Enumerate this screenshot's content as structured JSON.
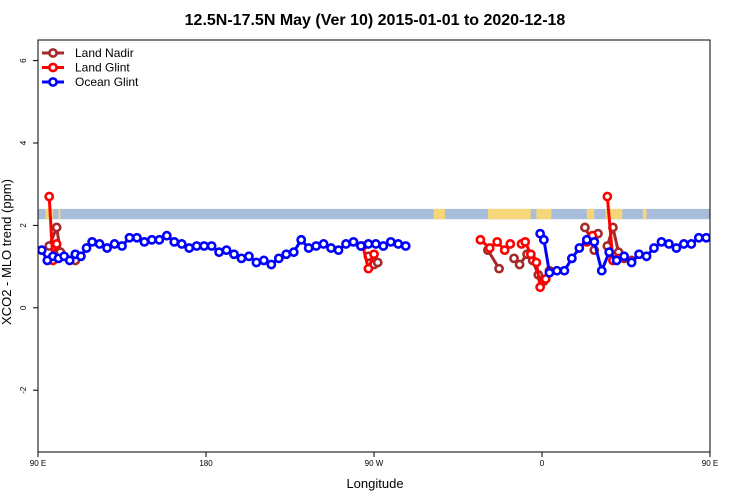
{
  "chart_data": {
    "type": "line",
    "title": "12.5N-17.5N May (Ver 10)   2015-01-01 to 2020-12-18",
    "xlabel": "Longitude",
    "ylabel": "XCO2 - MLO trend (ppm)",
    "xlim": [
      90,
      450
    ],
    "ylim": [
      -3.5,
      6.5
    ],
    "x_ticks": [
      {
        "value": 90,
        "label": "90 E"
      },
      {
        "value": 180,
        "label": "180"
      },
      {
        "value": 270,
        "label": "90 W"
      },
      {
        "value": 360,
        "label": "0"
      },
      {
        "value": 450,
        "label": "90 E"
      },
      {
        "value": 540,
        "label": "180"
      }
    ],
    "y_ticks": [
      {
        "value": -2,
        "label": "-2"
      },
      {
        "value": 0,
        "label": "0"
      },
      {
        "value": 2,
        "label": "2"
      },
      {
        "value": 4,
        "label": "4"
      },
      {
        "value": 6,
        "label": "6"
      }
    ],
    "legend_position": "top-left",
    "land_mask_band": {
      "y_range": [
        2.15,
        2.4
      ],
      "ocean_color": "#a8bcdc",
      "land_color": "#f5d77a"
    },
    "series": [
      {
        "name": "Land Nadir",
        "color": "#a52a2a",
        "segments": [
          [
            [
              96,
              1.5
            ],
            [
              100,
              1.95
            ],
            [
              102,
              1.35
            ],
            [
              110,
              1.15
            ]
          ],
          [
            [
              267,
              1.25
            ],
            [
              270,
              1.05
            ],
            [
              272,
              1.1
            ]
          ],
          [
            [
              331,
              1.4
            ],
            [
              337,
              0.95
            ]
          ],
          [
            [
              345,
              1.2
            ],
            [
              348,
              1.05
            ],
            [
              352,
              1.3
            ],
            [
              355,
              1.15
            ],
            [
              358,
              0.8
            ],
            [
              361,
              0.65
            ],
            [
              364,
              0.9
            ]
          ],
          [
            [
              383,
              1.95
            ],
            [
              386,
              1.7
            ],
            [
              388,
              1.4
            ],
            [
              390,
              1.8
            ]
          ],
          [
            [
              395,
              1.5
            ],
            [
              398,
              1.95
            ],
            [
              401,
              1.35
            ],
            [
              404,
              1.2
            ],
            [
              408,
              1.15
            ]
          ]
        ]
      },
      {
        "name": "Land Glint",
        "color": "#ff0000",
        "segments": [
          [
            [
              96,
              2.7
            ],
            [
              98,
              1.15
            ],
            [
              100,
              1.55
            ]
          ],
          [
            [
              264,
              1.5
            ],
            [
              267,
              0.95
            ],
            [
              270,
              1.3
            ]
          ],
          [
            [
              327,
              1.65
            ],
            [
              332,
              1.45
            ],
            [
              336,
              1.6
            ],
            [
              340,
              1.4
            ],
            [
              343,
              1.55
            ]
          ],
          [
            [
              349,
              1.55
            ],
            [
              351,
              1.6
            ],
            [
              354,
              1.3
            ],
            [
              357,
              1.1
            ],
            [
              359,
              0.5
            ],
            [
              362,
              0.7
            ]
          ],
          [
            [
              384,
              1.6
            ],
            [
              387,
              1.75
            ]
          ],
          [
            [
              395,
              2.7
            ],
            [
              398,
              1.15
            ],
            [
              401,
              1.2
            ]
          ]
        ]
      },
      {
        "name": "Ocean Glint",
        "color": "#0000ff",
        "segments": [
          [
            [
              92,
              1.4
            ],
            [
              95,
              1.15
            ],
            [
              98,
              1.25
            ],
            [
              101,
              1.2
            ],
            [
              104,
              1.25
            ],
            [
              107,
              1.15
            ],
            [
              110,
              1.3
            ],
            [
              113,
              1.25
            ],
            [
              116,
              1.45
            ],
            [
              119,
              1.6
            ],
            [
              123,
              1.55
            ],
            [
              127,
              1.45
            ],
            [
              131,
              1.55
            ],
            [
              135,
              1.5
            ],
            [
              139,
              1.7
            ],
            [
              143,
              1.7
            ],
            [
              147,
              1.6
            ],
            [
              151,
              1.65
            ],
            [
              155,
              1.65
            ],
            [
              159,
              1.75
            ],
            [
              163,
              1.6
            ],
            [
              167,
              1.55
            ],
            [
              171,
              1.45
            ],
            [
              175,
              1.5
            ],
            [
              179,
              1.5
            ],
            [
              183,
              1.5
            ],
            [
              187,
              1.35
            ],
            [
              191,
              1.4
            ],
            [
              195,
              1.3
            ],
            [
              199,
              1.2
            ],
            [
              203,
              1.25
            ],
            [
              207,
              1.1
            ],
            [
              211,
              1.15
            ],
            [
              215,
              1.05
            ],
            [
              219,
              1.2
            ],
            [
              223,
              1.3
            ],
            [
              227,
              1.35
            ],
            [
              231,
              1.65
            ],
            [
              235,
              1.45
            ],
            [
              239,
              1.5
            ],
            [
              243,
              1.55
            ],
            [
              247,
              1.45
            ],
            [
              251,
              1.4
            ],
            [
              255,
              1.55
            ],
            [
              259,
              1.6
            ],
            [
              263,
              1.5
            ],
            [
              267,
              1.55
            ],
            [
              271,
              1.55
            ],
            [
              275,
              1.5
            ],
            [
              279,
              1.6
            ],
            [
              283,
              1.55
            ],
            [
              287,
              1.5
            ]
          ],
          [
            [
              359,
              1.8
            ],
            [
              361,
              1.65
            ],
            [
              364,
              0.85
            ],
            [
              368,
              0.9
            ],
            [
              372,
              0.9
            ],
            [
              376,
              1.2
            ],
            [
              380,
              1.45
            ],
            [
              384,
              1.65
            ],
            [
              388,
              1.6
            ],
            [
              392,
              0.9
            ],
            [
              396,
              1.35
            ],
            [
              400,
              1.15
            ],
            [
              404,
              1.25
            ],
            [
              408,
              1.1
            ],
            [
              412,
              1.3
            ],
            [
              416,
              1.25
            ],
            [
              420,
              1.45
            ],
            [
              424,
              1.6
            ],
            [
              428,
              1.55
            ],
            [
              432,
              1.45
            ],
            [
              436,
              1.55
            ],
            [
              440,
              1.55
            ],
            [
              444,
              1.7
            ],
            [
              448,
              1.7
            ],
            [
              452,
              1.65
            ],
            [
              456,
              1.65
            ],
            [
              460,
              1.65
            ]
          ]
        ]
      }
    ]
  }
}
